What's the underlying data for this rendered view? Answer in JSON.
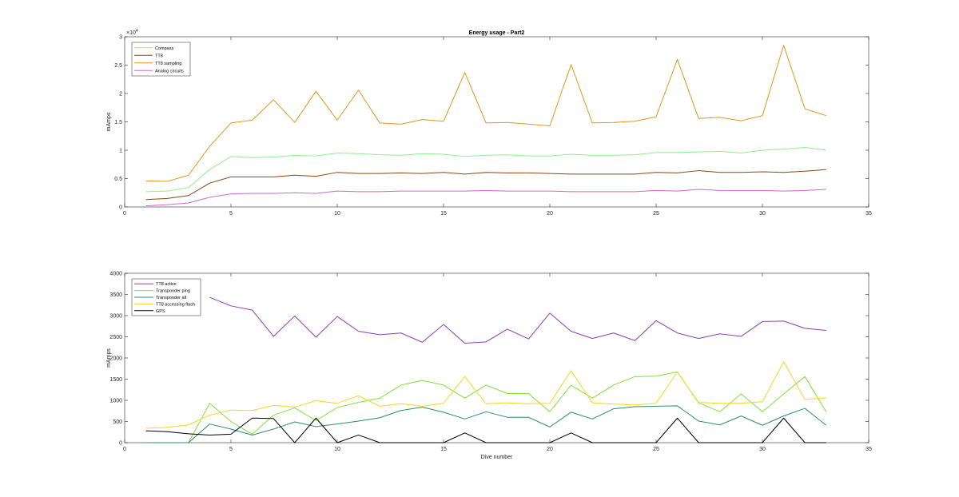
{
  "chart_data": [
    {
      "type": "line",
      "title": "Energy usage - Part2",
      "xlabel": "",
      "ylabel": "mAmps",
      "exponent_label": "×10",
      "exponent_power": "4",
      "xlim": [
        0,
        35
      ],
      "ylim": [
        0,
        30000
      ],
      "xticks": [
        0,
        5,
        10,
        15,
        20,
        25,
        30,
        35
      ],
      "yticks": [
        0,
        5000,
        10000,
        15000,
        20000,
        25000,
        30000
      ],
      "ytick_labels": [
        "0",
        "0.5",
        "1",
        "1.5",
        "2",
        "2.5",
        "3"
      ],
      "grid": false,
      "legend_position": "top-left",
      "x": [
        1,
        2,
        3,
        4,
        5,
        6,
        7,
        8,
        9,
        10,
        11,
        12,
        13,
        14,
        15,
        16,
        17,
        18,
        19,
        20,
        21,
        22,
        23,
        24,
        25,
        26,
        27,
        28,
        29,
        30,
        31,
        32,
        33
      ],
      "series": [
        {
          "name": "Compass",
          "color": "#90ee90",
          "values": [
            2700,
            2800,
            3400,
            6600,
            8900,
            8700,
            8800,
            9100,
            9000,
            9500,
            9400,
            9200,
            9100,
            9400,
            9300,
            8900,
            9100,
            9200,
            9000,
            9000,
            9300,
            9100,
            9100,
            9200,
            9600,
            9600,
            9700,
            9800,
            9500,
            10000,
            10200,
            10500,
            10000
          ]
        },
        {
          "name": "TT8",
          "color": "#8b4513",
          "values": [
            1300,
            1500,
            2000,
            4200,
            5300,
            5300,
            5300,
            5600,
            5400,
            6100,
            5900,
            5900,
            6000,
            5900,
            6100,
            5800,
            6100,
            6000,
            6000,
            5900,
            5800,
            5800,
            5800,
            5800,
            6100,
            6000,
            6400,
            6100,
            6100,
            6200,
            6100,
            6300,
            6600
          ]
        },
        {
          "name": "TT8 sampling",
          "color": "#e9931a",
          "values": [
            4600,
            4500,
            5600,
            10700,
            14800,
            15300,
            18900,
            14900,
            20400,
            15300,
            20600,
            14800,
            14600,
            15400,
            15100,
            23700,
            14800,
            14900,
            14600,
            14300,
            25100,
            14800,
            14900,
            15100,
            15900,
            26000,
            15600,
            15800,
            15200,
            16100,
            28500,
            17300,
            16100
          ]
        },
        {
          "name": "Analog circuits",
          "color": "#d966c5",
          "values": [
            200,
            400,
            700,
            1700,
            2300,
            2400,
            2400,
            2500,
            2400,
            2800,
            2700,
            2700,
            2800,
            2800,
            2800,
            2800,
            2900,
            2800,
            2800,
            2800,
            2700,
            2700,
            2700,
            2700,
            2900,
            2800,
            3100,
            2900,
            2900,
            2900,
            2800,
            2900,
            3100
          ]
        }
      ]
    },
    {
      "type": "line",
      "title": "",
      "xlabel": "Dive number",
      "ylabel": "mAmps",
      "xlim": [
        0,
        35
      ],
      "ylim": [
        0,
        4000
      ],
      "xticks": [
        0,
        5,
        10,
        15,
        20,
        25,
        30,
        35
      ],
      "yticks": [
        0,
        500,
        1000,
        1500,
        2000,
        2500,
        3000,
        3500,
        4000
      ],
      "ytick_labels": [
        "0",
        "500",
        "1000",
        "1500",
        "2000",
        "2500",
        "3000",
        "3500",
        "4000"
      ],
      "grid": false,
      "legend_position": "top-left",
      "x": [
        1,
        2,
        3,
        4,
        5,
        6,
        7,
        8,
        9,
        10,
        11,
        12,
        13,
        14,
        15,
        16,
        17,
        18,
        19,
        20,
        21,
        22,
        23,
        24,
        25,
        26,
        27,
        28,
        29,
        30,
        31,
        32,
        33
      ],
      "series": [
        {
          "name": "TT8 active",
          "color": "#8e3cb6",
          "values": [
            null,
            null,
            null,
            3430,
            3230,
            3130,
            2510,
            2990,
            2490,
            2980,
            2630,
            2550,
            2590,
            2370,
            2790,
            2350,
            2380,
            2680,
            2450,
            3060,
            2630,
            2460,
            2590,
            2410,
            2880,
            2590,
            2460,
            2570,
            2510,
            2860,
            2870,
            2700,
            2650
          ]
        },
        {
          "name": "Transponder ping",
          "color": "#7fe33a",
          "values": [
            0,
            0,
            0,
            930,
            500,
            200,
            650,
            820,
            520,
            830,
            950,
            1050,
            1360,
            1470,
            1360,
            1050,
            1360,
            1160,
            1160,
            730,
            1360,
            1050,
            1360,
            1560,
            1570,
            1670,
            940,
            730,
            1150,
            730,
            1150,
            1560,
            730
          ]
        },
        {
          "name": "Transponder all",
          "color": "#2e8b6e",
          "values": [
            0,
            0,
            0,
            440,
            320,
            180,
            320,
            490,
            380,
            440,
            510,
            590,
            760,
            840,
            720,
            560,
            730,
            600,
            600,
            370,
            720,
            560,
            800,
            850,
            860,
            870,
            510,
            420,
            630,
            410,
            630,
            810,
            410
          ]
        },
        {
          "name": "TT8 accessing flash",
          "color": "#f7d51f",
          "values": [
            340,
            360,
            420,
            650,
            770,
            760,
            880,
            840,
            990,
            930,
            1110,
            860,
            920,
            860,
            930,
            1560,
            920,
            940,
            920,
            930,
            1700,
            940,
            910,
            890,
            930,
            1670,
            950,
            930,
            930,
            970,
            1910,
            1020,
            1060
          ]
        },
        {
          "name": "GPS",
          "color": "#000000",
          "values": [
            280,
            260,
            210,
            180,
            200,
            580,
            570,
            0,
            580,
            0,
            180,
            0,
            0,
            0,
            0,
            230,
            0,
            0,
            0,
            0,
            230,
            0,
            0,
            0,
            0,
            580,
            0,
            0,
            0,
            0,
            580,
            0,
            0
          ]
        }
      ]
    }
  ]
}
